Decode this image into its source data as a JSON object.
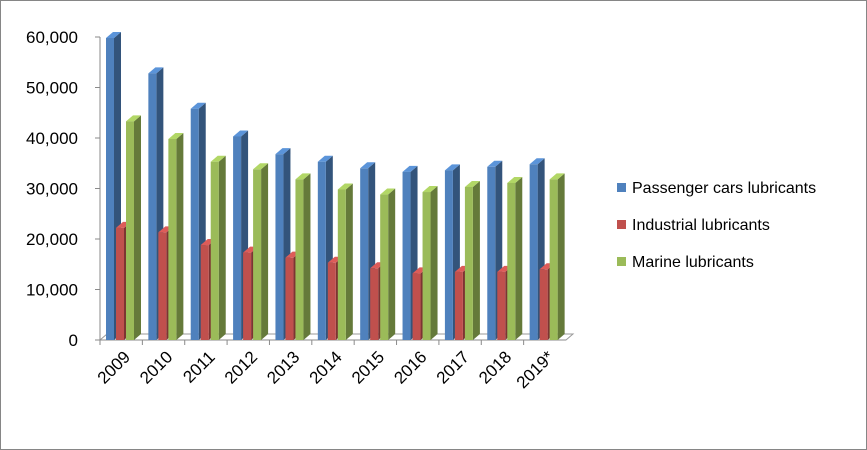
{
  "chart_data": {
    "type": "bar",
    "title": "",
    "xlabel": "",
    "ylabel": "",
    "categories": [
      "2009",
      "2010",
      "2011",
      "2012",
      "2013",
      "2014",
      "2015",
      "2016",
      "2017",
      "2018",
      "2019*"
    ],
    "series": [
      {
        "name": "Passenger cars lubricants",
        "color": "#4f81bd",
        "values": [
          59800,
          52800,
          45800,
          40300,
          36800,
          35300,
          34000,
          33300,
          33600,
          34300,
          34800
        ]
      },
      {
        "name": "Industrial lubricants",
        "color": "#c0504d",
        "values": [
          22200,
          21300,
          18800,
          17300,
          16300,
          15300,
          14200,
          13200,
          13500,
          13500,
          14000
        ]
      },
      {
        "name": "Marine lubricants",
        "color": "#9bbb59",
        "values": [
          43300,
          39800,
          35300,
          33800,
          31800,
          29800,
          28800,
          29300,
          30300,
          31100,
          31800
        ]
      }
    ],
    "yticks": [
      "0",
      "10,000",
      "20,000",
      "30,000",
      "40,000",
      "50,000",
      "60,000"
    ],
    "ylim": [
      0,
      60000
    ],
    "grid": false,
    "legend_position": "right"
  }
}
